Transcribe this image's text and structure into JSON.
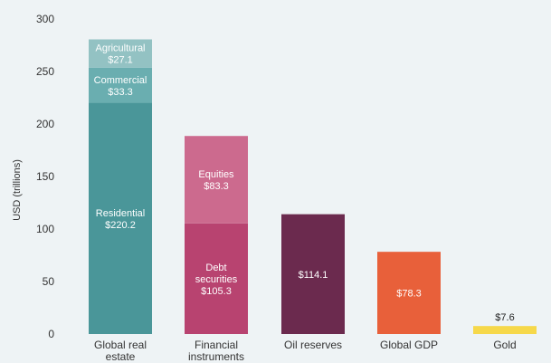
{
  "chart_data": {
    "type": "bar",
    "stacked": true,
    "ylabel": "USD (trillions)",
    "ylim": [
      0,
      300
    ],
    "yticks": [
      0,
      50,
      100,
      150,
      200,
      250,
      300
    ],
    "grid": false,
    "legend": "none",
    "bars": [
      {
        "category": [
          "Global real",
          "estate"
        ],
        "segments": [
          {
            "name": "Residential",
            "value": 220.2,
            "label": [
              "Residential",
              "$220.2"
            ],
            "color": "#4a9699"
          },
          {
            "name": "Commercial",
            "value": 33.3,
            "label": [
              "Commercial",
              "$33.3"
            ],
            "color": "#6aaeb0"
          },
          {
            "name": "Agricultural",
            "value": 27.1,
            "label": [
              "Agricultural",
              "$27.1"
            ],
            "color": "#93c2c3"
          }
        ]
      },
      {
        "category": [
          "Financial",
          "instruments"
        ],
        "segments": [
          {
            "name": "Debt securities",
            "value": 105.3,
            "label": [
              "Debt",
              "securities",
              "$105.3"
            ],
            "color": "#b84370"
          },
          {
            "name": "Equities",
            "value": 83.3,
            "label": [
              "Equities",
              "$83.3"
            ],
            "color": "#cc6a8e"
          }
        ]
      },
      {
        "category": [
          "Oil reserves"
        ],
        "segments": [
          {
            "name": "Oil reserves",
            "value": 114.1,
            "label": [
              "$114.1"
            ],
            "color": "#6b2a4e"
          }
        ]
      },
      {
        "category": [
          "Global GDP"
        ],
        "segments": [
          {
            "name": "Global GDP",
            "value": 78.3,
            "label": [
              "$78.3"
            ],
            "color": "#e8603a"
          }
        ]
      },
      {
        "category": [
          "Gold"
        ],
        "segments": [
          {
            "name": "Gold",
            "value": 7.6,
            "label": [
              "$7.6"
            ],
            "color": "#f6d84a",
            "label_outside": true
          }
        ]
      }
    ]
  }
}
